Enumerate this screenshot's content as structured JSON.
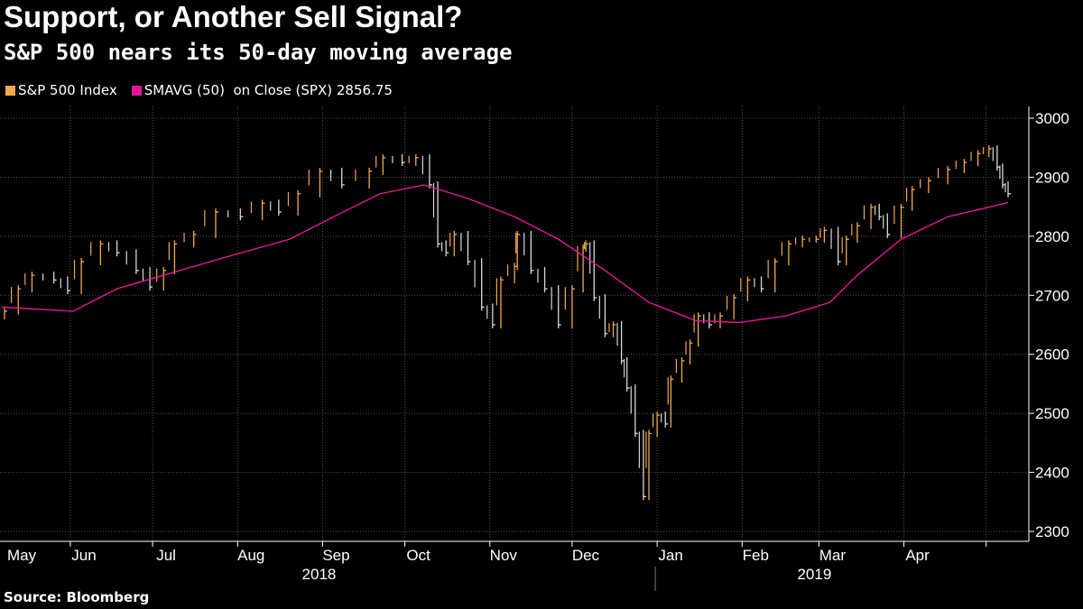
{
  "title": "Support, or Another Sell Signal?",
  "subtitle": "S&P 500 nears its 50-day moving average",
  "source": "Source: Bloomberg",
  "legend": [
    {
      "label": "S&P 500 Index",
      "color": "#f5a94a"
    },
    {
      "label": "SMAVG (50)  on Close (SPX) 2856.75",
      "color": "#e6169a"
    }
  ],
  "chart_data": {
    "type": "line",
    "title": "Support, or Another Sell Signal?",
    "xlabel": "",
    "ylabel": "",
    "ylim": [
      2300,
      3000
    ],
    "yticks": [
      "2300",
      "2400",
      "2500",
      "2600",
      "2700",
      "2800",
      "2900",
      "3000"
    ],
    "x_unit": "days since 2018-05-07",
    "xlim": [
      0,
      367
    ],
    "month_starts": [
      25,
      55,
      86,
      117,
      147,
      178,
      208,
      239,
      270,
      298,
      329,
      359
    ],
    "month_labels": [
      "May",
      "Jun",
      "Jul",
      "Aug",
      "Sep",
      "Oct",
      "Nov",
      "Dec",
      "Jan",
      "Feb",
      "Mar",
      "Apr"
    ],
    "month_label_days": [
      -6,
      25,
      55,
      86,
      117,
      147,
      178,
      208,
      239,
      270,
      298,
      329
    ],
    "years": [
      {
        "label": "2018",
        "day": 117
      },
      {
        "label": "2019",
        "day": 298
      }
    ],
    "series": [
      {
        "name": "S&P 500 Index",
        "color": "#f5a94a",
        "down_color": "#d8d8d8",
        "x": [
          1,
          6,
          11,
          19,
          24,
          29,
          36,
          42,
          49,
          54,
          59,
          63,
          70,
          78,
          87,
          95,
          101,
          108,
          116,
          124,
          134,
          139,
          146,
          151,
          156,
          159,
          162,
          165,
          170,
          175,
          179,
          182,
          187,
          188,
          193,
          198,
          203,
          208,
          212,
          213,
          216,
          220,
          223,
          226,
          228,
          231,
          234,
          236,
          239,
          242,
          244,
          248,
          251,
          254,
          258,
          262,
          267,
          272,
          277,
          282,
          287,
          292,
          297,
          300,
          305,
          308,
          312,
          317,
          320,
          323,
          328,
          332,
          338,
          345,
          351,
          356,
          360,
          363,
          365,
          367
        ],
        "values": [
          2673,
          2711,
          2734,
          2726,
          2708,
          2757,
          2787,
          2772,
          2742,
          2714,
          2742,
          2787,
          2803,
          2841,
          2833,
          2856,
          2841,
          2872,
          2910,
          2887,
          2910,
          2933,
          2925,
          2933,
          2887,
          2787,
          2772,
          2803,
          2757,
          2680,
          2650,
          2726,
          2749,
          2803,
          2742,
          2711,
          2650,
          2711,
          2780,
          2787,
          2696,
          2635,
          2650,
          2589,
          2543,
          2466,
          2359,
          2466,
          2497,
          2482,
          2558,
          2589,
          2619,
          2665,
          2650,
          2665,
          2696,
          2726,
          2711,
          2757,
          2787,
          2795,
          2795,
          2810,
          2757,
          2795,
          2818,
          2849,
          2833,
          2803,
          2849,
          2879,
          2894,
          2913,
          2925,
          2940,
          2948,
          2917,
          2887,
          2872
        ]
      },
      {
        "name": "SMAVG (50) on Close (SPX)",
        "color": "#e6169a",
        "x": [
          0,
          26,
          42,
          59,
          82,
          105,
          121,
          138,
          154,
          170,
          187,
          203,
          220,
          236,
          253,
          269,
          286,
          302,
          312,
          328,
          345,
          367
        ],
        "values": [
          2680,
          2673,
          2711,
          2734,
          2765,
          2795,
          2833,
          2872,
          2887,
          2864,
          2833,
          2795,
          2742,
          2688,
          2657,
          2654,
          2665,
          2688,
          2734,
          2795,
          2833,
          2857
        ]
      }
    ]
  }
}
